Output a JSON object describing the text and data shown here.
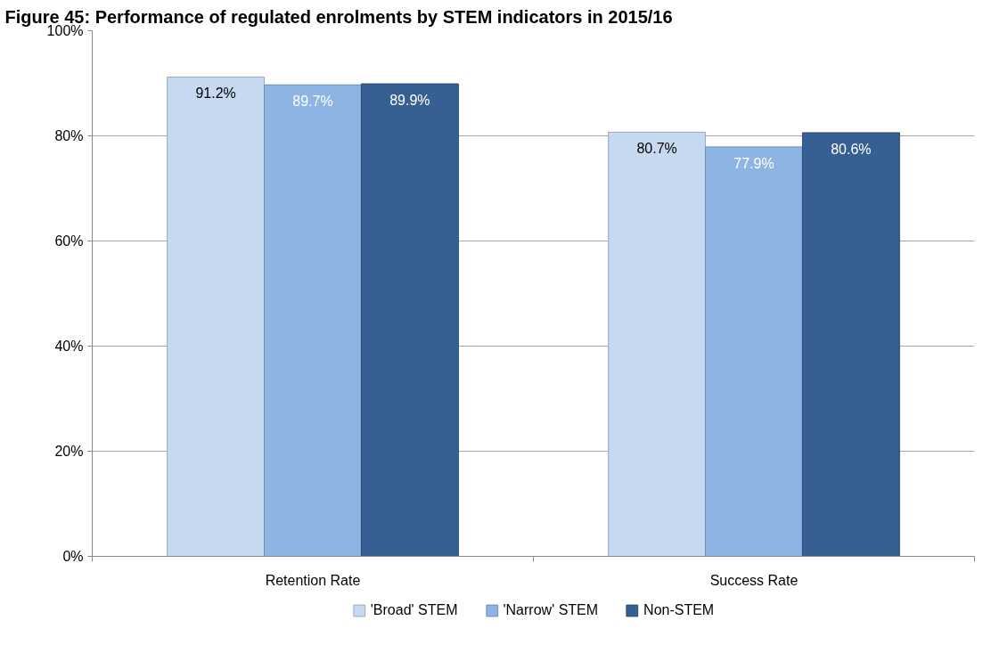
{
  "chart_data": {
    "type": "bar",
    "title": "Figure 45: Performance of regulated enrolments by STEM indicators in 2015/16",
    "categories": [
      "Retention Rate",
      "Success Rate"
    ],
    "series": [
      {
        "name": "'Broad' STEM",
        "color": "#c6d9f1",
        "values": [
          91.2,
          80.7
        ],
        "value_labels": [
          "91.2%",
          "80.7%"
        ]
      },
      {
        "name": "'Narrow' STEM",
        "color": "#8eb4e3",
        "values": [
          89.7,
          77.9
        ],
        "value_labels": [
          "89.7%",
          "77.9%"
        ]
      },
      {
        "name": "Non-STEM",
        "color": "#376092",
        "values": [
          89.9,
          80.6
        ],
        "value_labels": [
          "89.9%",
          "80.6%"
        ]
      }
    ],
    "ylim": [
      0,
      100
    ],
    "yticks": [
      {
        "value": 0,
        "label": "0%"
      },
      {
        "value": 20,
        "label": "20%"
      },
      {
        "value": 40,
        "label": "40%"
      },
      {
        "value": 60,
        "label": "60%"
      },
      {
        "value": 80,
        "label": "80%"
      },
      {
        "value": 100,
        "label": "100%"
      }
    ],
    "grid": "y",
    "legend": "bottom"
  }
}
